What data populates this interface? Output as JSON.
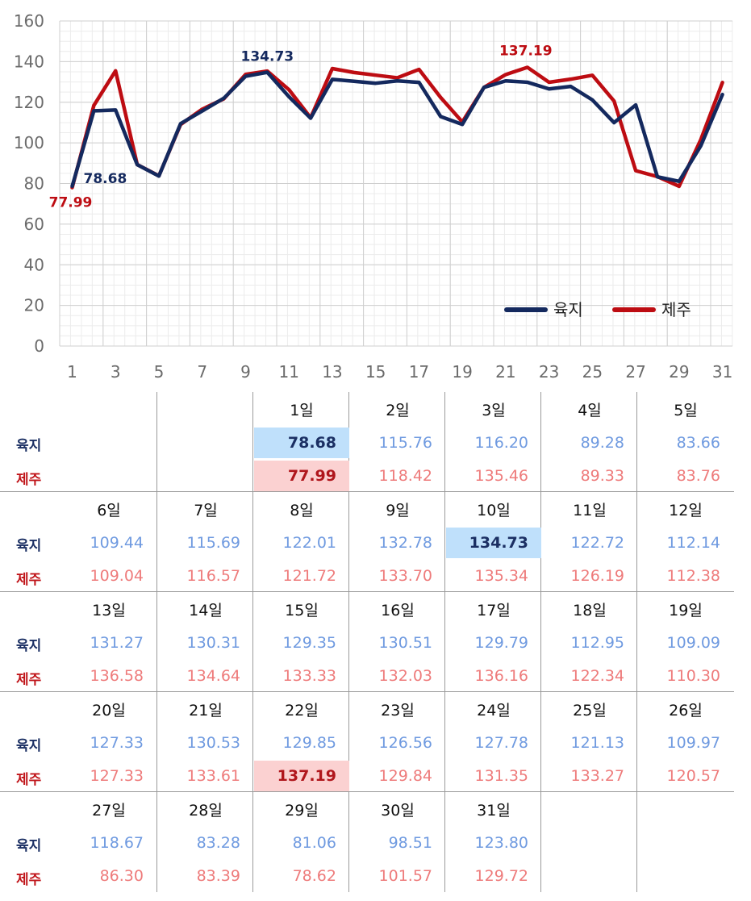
{
  "chart_data": {
    "type": "line",
    "x": [
      1,
      2,
      3,
      4,
      5,
      6,
      7,
      8,
      9,
      10,
      11,
      12,
      13,
      14,
      15,
      16,
      17,
      18,
      19,
      20,
      21,
      22,
      23,
      24,
      25,
      26,
      27,
      28,
      29,
      30,
      31
    ],
    "xticks": [
      1,
      3,
      5,
      7,
      9,
      11,
      13,
      15,
      17,
      19,
      21,
      23,
      25,
      27,
      29,
      31
    ],
    "yticks": [
      0,
      20,
      40,
      60,
      80,
      100,
      120,
      140,
      160
    ],
    "ylim": [
      0,
      160
    ],
    "grid": true,
    "legend_position": "bottom-right",
    "series": [
      {
        "name": "육지",
        "color": "#14295e",
        "values": [
          78.68,
          115.76,
          116.2,
          89.28,
          83.66,
          109.44,
          115.69,
          122.01,
          132.78,
          134.73,
          122.72,
          112.14,
          131.27,
          130.31,
          129.35,
          130.51,
          129.79,
          112.95,
          109.09,
          127.33,
          130.53,
          129.85,
          126.56,
          127.78,
          121.13,
          109.97,
          118.67,
          83.28,
          81.06,
          98.51,
          123.8
        ]
      },
      {
        "name": "제주",
        "color": "#bd0c12",
        "values": [
          77.99,
          118.42,
          135.46,
          89.33,
          83.76,
          109.04,
          116.57,
          121.72,
          133.7,
          135.34,
          126.19,
          112.38,
          136.58,
          134.64,
          133.33,
          132.03,
          136.16,
          122.34,
          110.3,
          127.33,
          133.61,
          137.19,
          129.84,
          131.35,
          133.27,
          120.57,
          86.3,
          83.39,
          78.62,
          101.57,
          129.72
        ]
      }
    ],
    "annotations": [
      {
        "series": 0,
        "day": 1,
        "text": "78.68"
      },
      {
        "series": 1,
        "day": 1,
        "text": "77.99"
      },
      {
        "series": 0,
        "day": 10,
        "text": "134.73"
      },
      {
        "series": 1,
        "day": 22,
        "text": "137.19"
      }
    ]
  },
  "calendar": {
    "row_labels": {
      "land": "육지",
      "jeju": "제주"
    },
    "day_suffix": "일",
    "leading_blank": 2,
    "highlights": {
      "land": [
        1,
        10
      ],
      "jeju": [
        1,
        22
      ]
    }
  }
}
